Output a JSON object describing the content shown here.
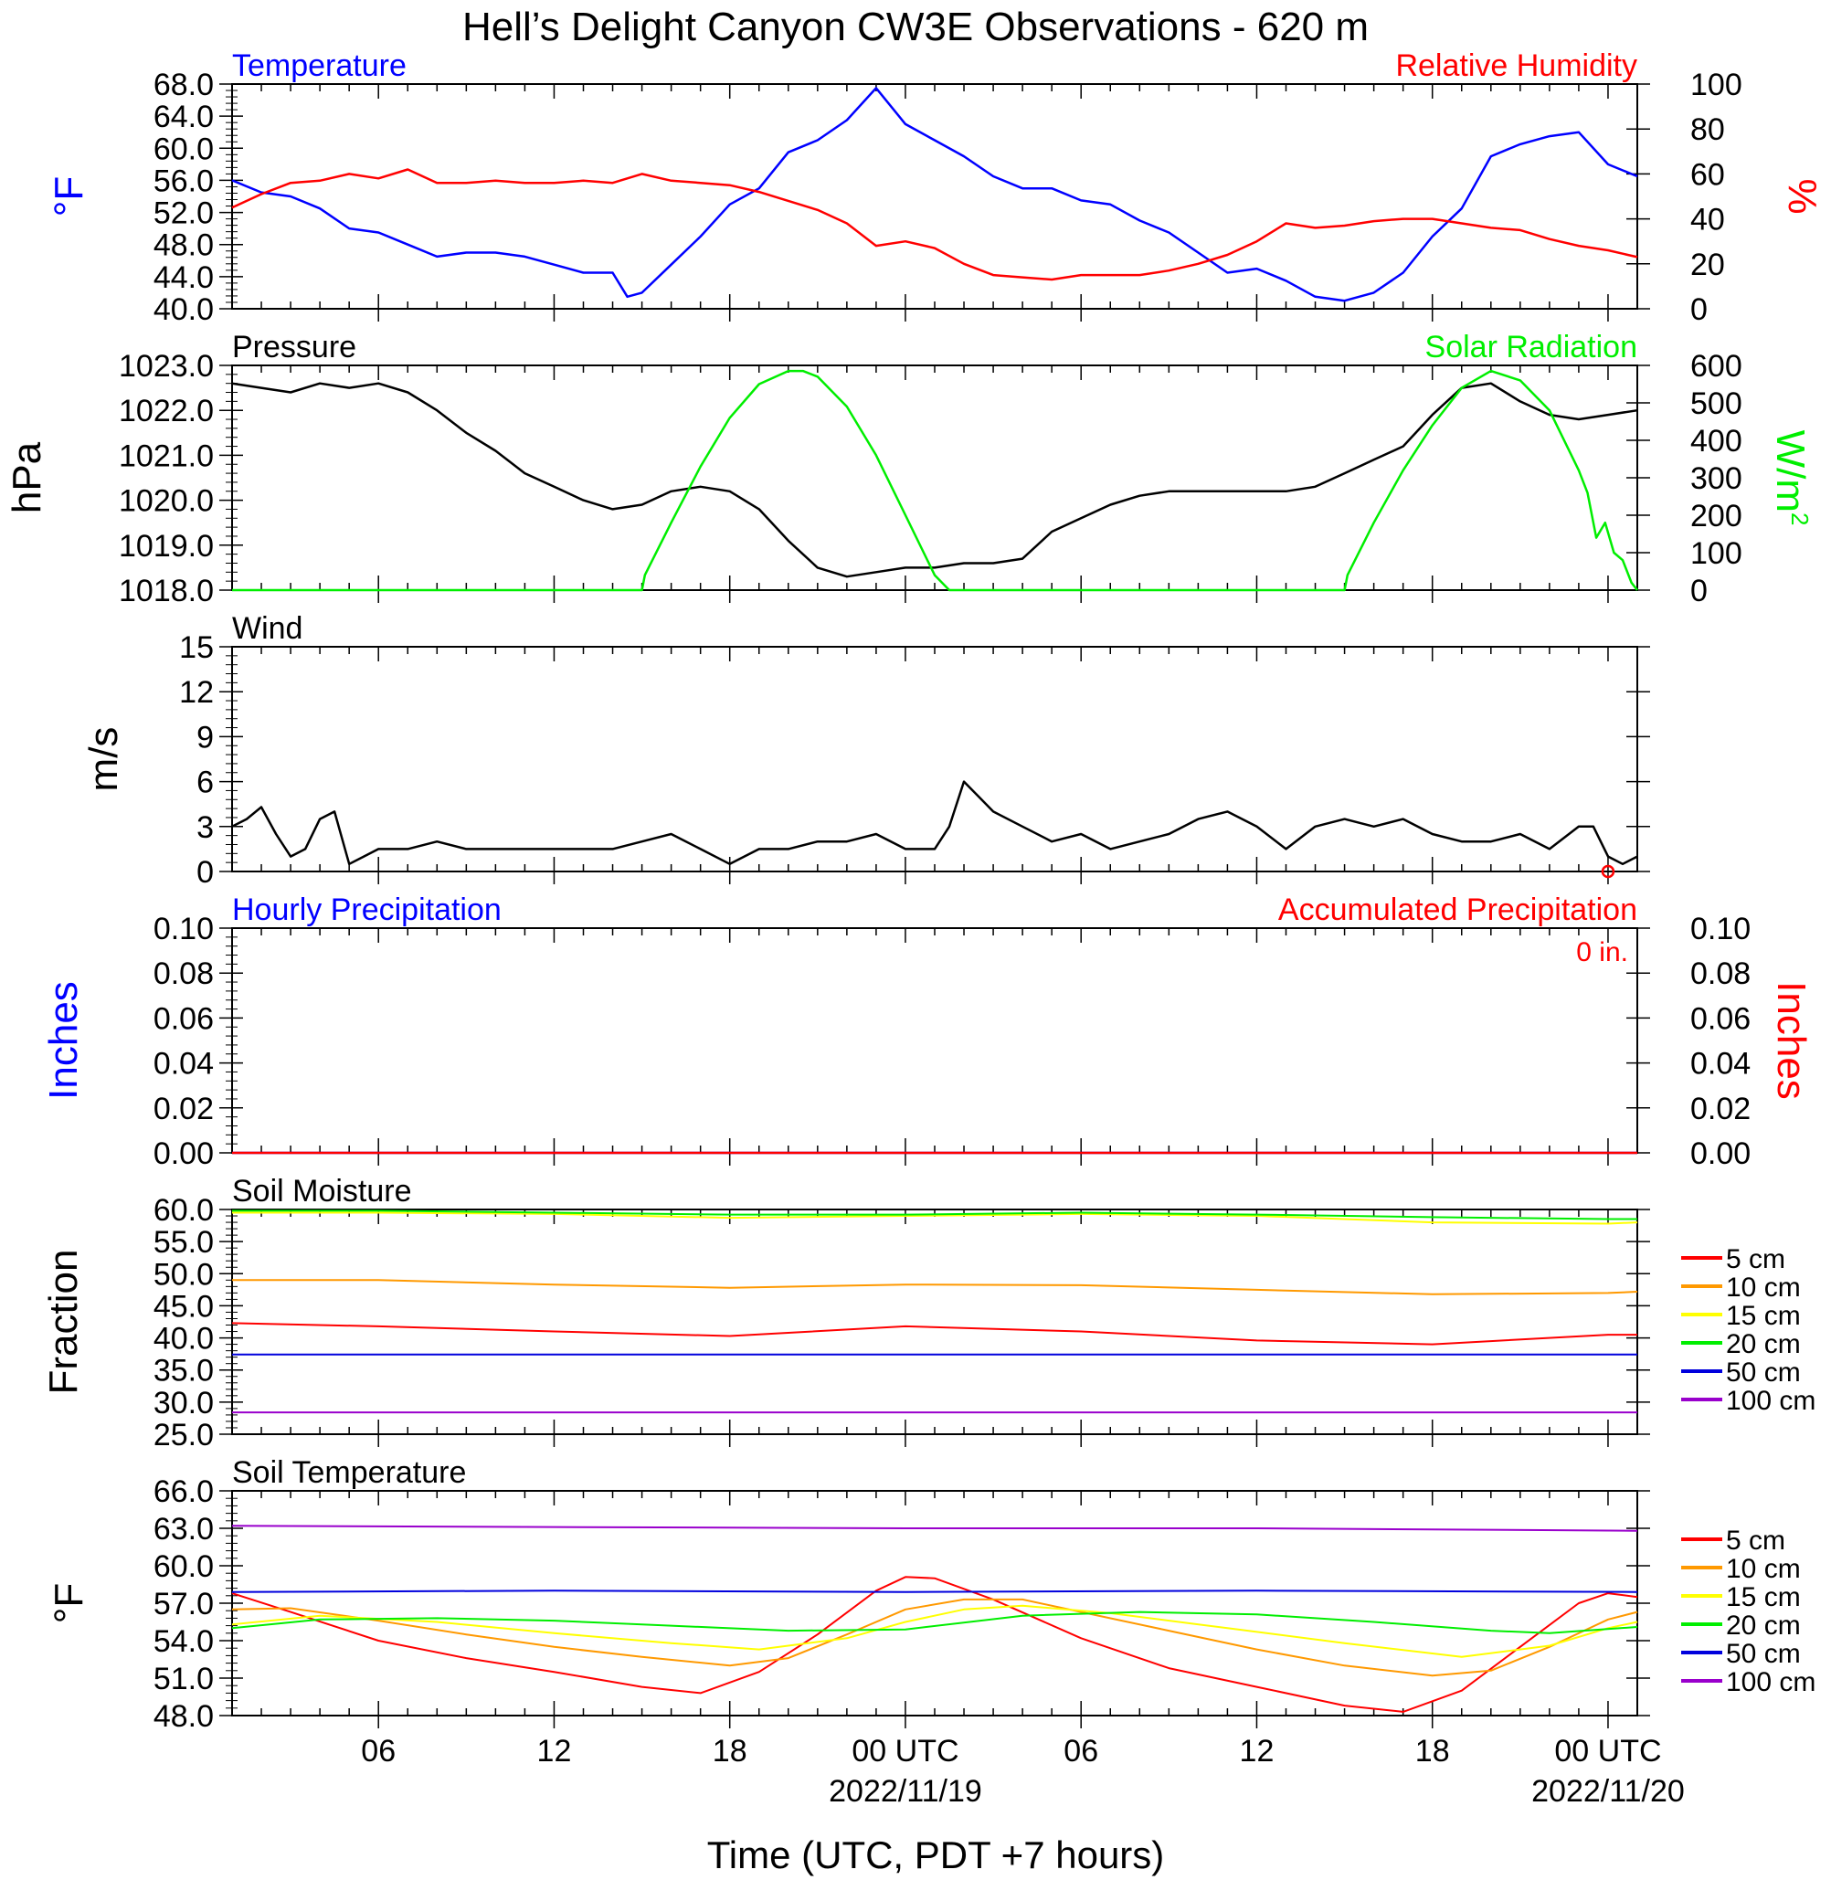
{
  "figure": {
    "title": "Hell’s Delight Canyon CW3E Observations - 620 m",
    "xlabel": "Time (UTC, PDT +7 hours)",
    "x_ticks": [
      {
        "t": 6,
        "label": "06",
        "sub": ""
      },
      {
        "t": 12,
        "label": "12",
        "sub": ""
      },
      {
        "t": 18,
        "label": "18",
        "sub": ""
      },
      {
        "t": 24,
        "label": "00 UTC",
        "sub": "2022/11/19"
      },
      {
        "t": 30,
        "label": "06",
        "sub": ""
      },
      {
        "t": 36,
        "label": "12",
        "sub": ""
      },
      {
        "t": 42,
        "label": "18",
        "sub": ""
      },
      {
        "t": 48,
        "label": "00 UTC",
        "sub": "2022/11/20"
      }
    ],
    "x_range_hours": [
      1,
      49
    ]
  },
  "colors": {
    "blue": "#0000ff",
    "red": "#ff0000",
    "green": "#00ee00",
    "black": "#000000",
    "soil": {
      "5 cm": "#ff0000",
      "10 cm": "#ff9900",
      "15 cm": "#ffff00",
      "20 cm": "#00ee00",
      "50 cm": "#0000dd",
      "100 cm": "#9900cc"
    }
  },
  "chart_data": [
    {
      "type": "line",
      "panel": "temperature-humidity",
      "title_left": "Temperature",
      "title_right": "Relative Humidity",
      "ylabel_left": "°F",
      "ylabel_right": "%",
      "ylim_left": [
        40,
        68
      ],
      "ylim_right": [
        0,
        100
      ],
      "yticks_left": [
        "40.0",
        "44.0",
        "48.0",
        "52.0",
        "56.0",
        "60.0",
        "64.0",
        "68.0"
      ],
      "yticks_right": [
        "0",
        "20",
        "40",
        "60",
        "80",
        "100"
      ],
      "series": [
        {
          "name": "Temperature",
          "axis": "left",
          "color": "#0000ff",
          "x": [
            1,
            2,
            3,
            4,
            5,
            6,
            7,
            8,
            9,
            10,
            11,
            12,
            13,
            14,
            14.5,
            15,
            16,
            17,
            18,
            19,
            20,
            21,
            22,
            23,
            24,
            25,
            26,
            27,
            28,
            29,
            30,
            31,
            32,
            33,
            34,
            35,
            36,
            37,
            38,
            39,
            40,
            41,
            42,
            43,
            44,
            45,
            46,
            47,
            48,
            49
          ],
          "y": [
            56,
            54.5,
            54,
            52.5,
            50,
            49.5,
            48,
            46.5,
            47,
            47,
            46.5,
            45.5,
            44.5,
            44.5,
            41.5,
            42,
            45.5,
            49,
            53,
            55,
            59.5,
            61,
            63.5,
            67.5,
            63,
            61,
            59,
            56.5,
            55,
            55,
            53.5,
            53,
            51,
            49.5,
            47,
            44.5,
            45,
            43.5,
            41.5,
            41,
            42,
            44.5,
            49,
            52.5,
            59,
            60.5,
            61.5,
            62,
            58,
            56.5
          ]
        },
        {
          "name": "Relative Humidity",
          "axis": "right",
          "color": "#ff0000",
          "x": [
            1,
            2,
            3,
            4,
            5,
            6,
            7,
            8,
            9,
            10,
            11,
            12,
            13,
            14,
            15,
            16,
            17,
            18,
            19,
            20,
            21,
            22,
            23,
            24,
            25,
            26,
            27,
            28,
            29,
            30,
            31,
            32,
            33,
            34,
            35,
            36,
            37,
            38,
            39,
            40,
            41,
            42,
            43,
            44,
            45,
            46,
            47,
            48,
            49
          ],
          "y": [
            45,
            51,
            56,
            57,
            60,
            58,
            62,
            56,
            56,
            57,
            56,
            56,
            57,
            56,
            60,
            57,
            56,
            55,
            52,
            48,
            44,
            38,
            28,
            30,
            27,
            20,
            15,
            14,
            13,
            15,
            15,
            15,
            17,
            20,
            24,
            30,
            38,
            36,
            37,
            39,
            40,
            40,
            38,
            36,
            35,
            31,
            28,
            26,
            23
          ]
        }
      ]
    },
    {
      "type": "line",
      "panel": "pressure-solar",
      "title_left": "Pressure",
      "title_right": "Solar Radiation",
      "ylabel_left": "hPa",
      "ylabel_right": "W/m2",
      "ylim_left": [
        1018,
        1023
      ],
      "ylim_right": [
        0,
        600
      ],
      "yticks_left": [
        "1018.0",
        "1019.0",
        "1020.0",
        "1021.0",
        "1022.0",
        "1023.0"
      ],
      "yticks_right": [
        "0",
        "100",
        "200",
        "300",
        "400",
        "500",
        "600"
      ],
      "series": [
        {
          "name": "Pressure",
          "axis": "left",
          "color": "#000000",
          "x": [
            1,
            2,
            3,
            4,
            5,
            6,
            7,
            8,
            9,
            10,
            11,
            12,
            13,
            14,
            15,
            16,
            17,
            18,
            19,
            20,
            21,
            22,
            23,
            24,
            25,
            26,
            27,
            28,
            29,
            30,
            31,
            32,
            33,
            34,
            35,
            36,
            37,
            38,
            39,
            40,
            41,
            42,
            43,
            44,
            45,
            46,
            47,
            48,
            49
          ],
          "y": [
            1022.6,
            1022.5,
            1022.4,
            1022.6,
            1022.5,
            1022.6,
            1022.4,
            1022.0,
            1021.5,
            1021.1,
            1020.6,
            1020.3,
            1020.0,
            1019.8,
            1019.9,
            1020.2,
            1020.3,
            1020.2,
            1019.8,
            1019.1,
            1018.5,
            1018.3,
            1018.4,
            1018.5,
            1018.5,
            1018.6,
            1018.6,
            1018.7,
            1019.3,
            1019.6,
            1019.9,
            1020.1,
            1020.2,
            1020.2,
            1020.2,
            1020.2,
            1020.2,
            1020.3,
            1020.6,
            1020.9,
            1021.2,
            1021.9,
            1022.5,
            1022.6,
            1022.2,
            1021.9,
            1021.8,
            1021.9,
            1022.0
          ]
        },
        {
          "name": "Solar Radiation",
          "axis": "right",
          "color": "#00ee00",
          "x": [
            1,
            15,
            15.1,
            16,
            17,
            18,
            19,
            20,
            20.5,
            21,
            22,
            23,
            24,
            25,
            25.5,
            30,
            39,
            39.1,
            40,
            41,
            42,
            43,
            44,
            45,
            46,
            47,
            47.3,
            47.6,
            47.9,
            48.2,
            48.5,
            48.8,
            49
          ],
          "y": [
            0,
            0,
            40,
            180,
            330,
            460,
            550,
            585,
            585,
            570,
            490,
            360,
            200,
            40,
            0,
            0,
            0,
            40,
            180,
            320,
            440,
            540,
            585,
            560,
            480,
            320,
            260,
            140,
            180,
            100,
            80,
            20,
            0
          ]
        }
      ]
    },
    {
      "type": "line",
      "panel": "wind",
      "title_left": "Wind",
      "ylabel_left": "m/s",
      "ylim_left": [
        0,
        15
      ],
      "yticks_left": [
        "0",
        "3",
        "6",
        "9",
        "12",
        "15"
      ],
      "series": [
        {
          "name": "Wind speed",
          "axis": "left",
          "color": "#000000",
          "x": [
            1,
            1.5,
            2,
            2.5,
            3,
            3.5,
            4,
            4.5,
            5,
            5.5,
            6,
            7,
            8,
            9,
            10,
            11,
            12,
            13,
            14,
            15,
            16,
            17,
            18,
            19,
            20,
            21,
            22,
            23,
            24,
            25,
            25.5,
            26,
            26.5,
            27,
            28,
            29,
            30,
            31,
            32,
            33,
            34,
            35,
            36,
            37,
            38,
            39,
            40,
            41,
            42,
            43,
            44,
            45,
            46,
            47,
            47.5,
            48,
            48.5,
            49
          ],
          "y": [
            3,
            3.5,
            4.3,
            2.5,
            1,
            1.5,
            3.5,
            4,
            0.5,
            1,
            1.5,
            1.5,
            2,
            1.5,
            1.5,
            1.5,
            1.5,
            1.5,
            1.5,
            2,
            2.5,
            1.5,
            0.5,
            1.5,
            1.5,
            2,
            2,
            2.5,
            1.5,
            1.5,
            3,
            6,
            5,
            4,
            3,
            2,
            2.5,
            1.5,
            2,
            2.5,
            3.5,
            4,
            3,
            1.5,
            3,
            3.5,
            3,
            3.5,
            2.5,
            2,
            2,
            2.5,
            1.5,
            3,
            3,
            1,
            0.5,
            1
          ]
        }
      ]
    },
    {
      "type": "line",
      "panel": "precipitation",
      "title_left": "Hourly Precipitation",
      "title_right": "Accumulated Precipitation",
      "annotation": "0 in.",
      "ylabel_left": "Inches",
      "ylabel_right": "Inches",
      "ylim_left": [
        0,
        0.1
      ],
      "ylim_right": [
        0,
        0.1
      ],
      "yticks_left": [
        "0.00",
        "0.02",
        "0.04",
        "0.06",
        "0.08",
        "0.10"
      ],
      "yticks_right": [
        "0.00",
        "0.02",
        "0.04",
        "0.06",
        "0.08",
        "0.10"
      ],
      "series": [
        {
          "name": "Hourly Precipitation",
          "axis": "left",
          "color": "#0000ff",
          "x": [
            1,
            49
          ],
          "y": [
            0,
            0
          ]
        },
        {
          "name": "Accumulated Precipitation",
          "axis": "right",
          "color": "#ff0000",
          "x": [
            1,
            49
          ],
          "y": [
            0,
            0
          ]
        }
      ]
    },
    {
      "type": "line",
      "panel": "soil-moisture",
      "title_left": "Soil Moisture",
      "ylabel_left": "Fraction",
      "ylim_left": [
        25,
        60
      ],
      "yticks_left": [
        "25.0",
        "30.0",
        "35.0",
        "40.0",
        "45.0",
        "50.0",
        "55.0",
        "60.0"
      ],
      "legend": [
        "5 cm",
        "10 cm",
        "15 cm",
        "20 cm",
        "50 cm",
        "100 cm"
      ],
      "series": [
        {
          "name": "5 cm",
          "axis": "left",
          "color": "#ff0000",
          "x": [
            1,
            6,
            12,
            18,
            24,
            30,
            36,
            42,
            48,
            49
          ],
          "y": [
            42.3,
            41.8,
            41,
            40.3,
            41.8,
            41,
            39.6,
            39,
            40.5,
            40.5
          ]
        },
        {
          "name": "10 cm",
          "axis": "left",
          "color": "#ff9900",
          "x": [
            1,
            6,
            12,
            18,
            24,
            30,
            36,
            42,
            48,
            49
          ],
          "y": [
            49,
            49,
            48.3,
            47.8,
            48.3,
            48.2,
            47.5,
            46.8,
            47,
            47.2
          ]
        },
        {
          "name": "15 cm",
          "axis": "left",
          "color": "#ffff00",
          "x": [
            1,
            6,
            12,
            18,
            24,
            30,
            36,
            42,
            48,
            49
          ],
          "y": [
            59.5,
            59.5,
            59.3,
            58.7,
            59,
            59.3,
            59,
            58,
            57.8,
            58
          ]
        },
        {
          "name": "20 cm",
          "axis": "left",
          "color": "#00ee00",
          "x": [
            1,
            6,
            12,
            18,
            24,
            30,
            36,
            42,
            48,
            49
          ],
          "y": [
            59.8,
            59.8,
            59.5,
            59.2,
            59.2,
            59.5,
            59.2,
            58.8,
            58.5,
            58.5
          ]
        },
        {
          "name": "50 cm",
          "axis": "left",
          "color": "#0000dd",
          "x": [
            1,
            49
          ],
          "y": [
            37.4,
            37.4
          ]
        },
        {
          "name": "100 cm",
          "axis": "left",
          "color": "#9900cc",
          "x": [
            1,
            49
          ],
          "y": [
            28.4,
            28.4
          ]
        }
      ]
    },
    {
      "type": "line",
      "panel": "soil-temperature",
      "title_left": "Soil Temperature",
      "ylabel_left": "°F",
      "ylim_left": [
        48,
        66
      ],
      "yticks_left": [
        "48.0",
        "51.0",
        "54.0",
        "57.0",
        "60.0",
        "63.0",
        "66.0"
      ],
      "legend": [
        "5 cm",
        "10 cm",
        "15 cm",
        "20 cm",
        "50 cm",
        "100 cm"
      ],
      "series": [
        {
          "name": "5 cm",
          "axis": "left",
          "color": "#ff0000",
          "x": [
            1,
            3,
            6,
            9,
            12,
            15,
            17,
            19,
            21,
            23,
            24,
            25,
            27,
            30,
            33,
            36,
            39,
            41,
            43,
            45,
            47,
            48,
            49
          ],
          "y": [
            57.8,
            56.3,
            54,
            52.6,
            51.5,
            50.3,
            49.8,
            51.5,
            54.5,
            58,
            59.1,
            59,
            57.3,
            54.2,
            51.8,
            50.3,
            48.8,
            48.3,
            50,
            53.5,
            57,
            57.8,
            57.5
          ]
        },
        {
          "name": "10 cm",
          "axis": "left",
          "color": "#ff9900",
          "x": [
            1,
            3,
            6,
            9,
            12,
            15,
            18,
            20,
            22,
            24,
            26,
            28,
            30,
            33,
            36,
            39,
            42,
            44,
            46,
            48,
            49
          ],
          "y": [
            56.5,
            56.6,
            55.6,
            54.5,
            53.5,
            52.7,
            52,
            52.6,
            54.5,
            56.5,
            57.3,
            57.3,
            56.3,
            54.8,
            53.3,
            52,
            51.2,
            51.6,
            53.5,
            55.7,
            56.3
          ]
        },
        {
          "name": "15 cm",
          "axis": "left",
          "color": "#ffff00",
          "x": [
            1,
            4,
            8,
            12,
            16,
            19,
            22,
            24,
            26,
            28,
            31,
            35,
            39,
            43,
            46,
            48,
            49
          ],
          "y": [
            55.3,
            56,
            55.5,
            54.6,
            53.8,
            53.3,
            54.2,
            55.5,
            56.5,
            56.8,
            56.2,
            55,
            53.8,
            52.7,
            53.6,
            55,
            55.5
          ]
        },
        {
          "name": "20 cm",
          "axis": "left",
          "color": "#00ee00",
          "x": [
            1,
            4,
            8,
            12,
            16,
            20,
            24,
            28,
            32,
            36,
            40,
            44,
            46,
            49
          ],
          "y": [
            55,
            55.7,
            55.8,
            55.6,
            55.2,
            54.8,
            54.9,
            56,
            56.3,
            56.1,
            55.5,
            54.8,
            54.6,
            55.1
          ]
        },
        {
          "name": "50 cm",
          "axis": "left",
          "color": "#0000dd",
          "x": [
            1,
            12,
            24,
            36,
            49
          ],
          "y": [
            57.9,
            58,
            57.9,
            58,
            57.9
          ]
        },
        {
          "name": "100 cm",
          "axis": "left",
          "color": "#9900cc",
          "x": [
            1,
            12,
            24,
            36,
            49
          ],
          "y": [
            63.2,
            63.1,
            63,
            63,
            62.8
          ]
        }
      ]
    }
  ]
}
